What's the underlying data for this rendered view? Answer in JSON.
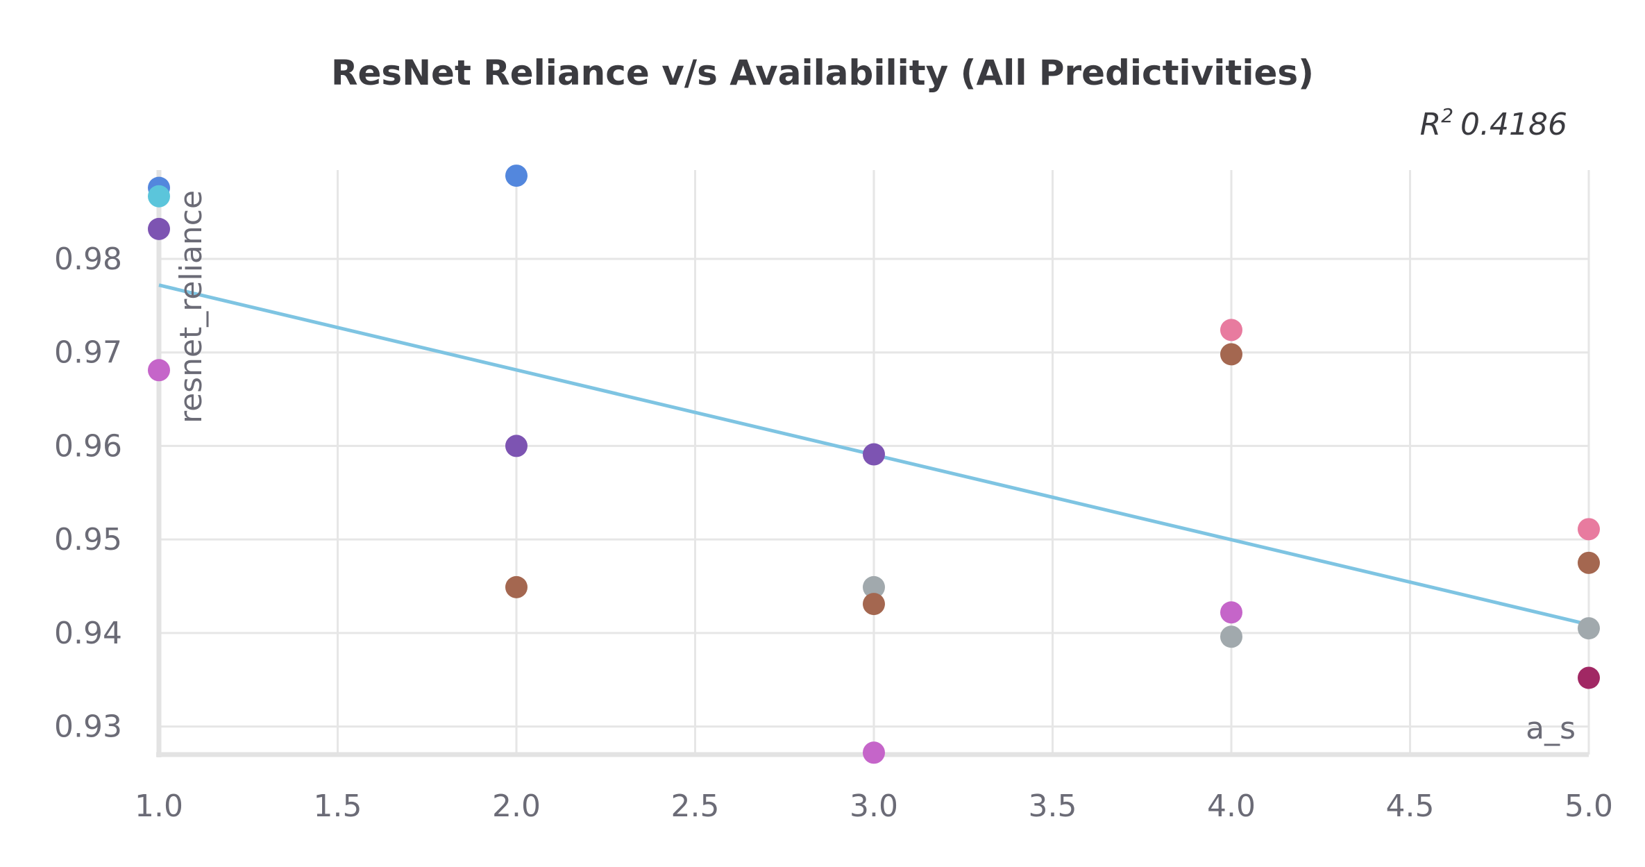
{
  "chart_data": {
    "type": "scatter",
    "title": "ResNet Reliance v/s Availability (All Predictivities)",
    "annotation": {
      "r2_symbol": "R",
      "r2_exponent": "2",
      "r2_value": "0.4186"
    },
    "xlabel": "a_s",
    "ylabel": "resnet_reliance",
    "xlim": [
      1.0,
      5.0
    ],
    "ylim": [
      0.927,
      0.9895
    ],
    "xticks": [
      {
        "value": 1.0,
        "label": "1.0"
      },
      {
        "value": 1.5,
        "label": "1.5"
      },
      {
        "value": 2.0,
        "label": "2.0"
      },
      {
        "value": 2.5,
        "label": "2.5"
      },
      {
        "value": 3.0,
        "label": "3.0"
      },
      {
        "value": 3.5,
        "label": "3.5"
      },
      {
        "value": 4.0,
        "label": "4.0"
      },
      {
        "value": 4.5,
        "label": "4.5"
      },
      {
        "value": 5.0,
        "label": "5.0"
      }
    ],
    "yticks": [
      {
        "value": 0.93,
        "label": "0.93"
      },
      {
        "value": 0.94,
        "label": "0.94"
      },
      {
        "value": 0.95,
        "label": "0.95"
      },
      {
        "value": 0.96,
        "label": "0.96"
      },
      {
        "value": 0.97,
        "label": "0.97"
      },
      {
        "value": 0.98,
        "label": "0.98"
      }
    ],
    "grid": true,
    "trendline": {
      "x": [
        1.0,
        5.0
      ],
      "y": [
        0.9772,
        0.9409
      ],
      "color": "#7ec4e2"
    },
    "points": [
      {
        "x": 1.0,
        "y": 0.9876,
        "color": "#5387dd"
      },
      {
        "x": 1.0,
        "y": 0.9867,
        "color": "#5bc5db"
      },
      {
        "x": 1.0,
        "y": 0.9832,
        "color": "#7d54b2"
      },
      {
        "x": 1.0,
        "y": 0.9681,
        "color": "#c565c9"
      },
      {
        "x": 2.0,
        "y": 0.9889,
        "color": "#5387dd"
      },
      {
        "x": 2.0,
        "y": 0.96,
        "color": "#7d54b2"
      },
      {
        "x": 2.0,
        "y": 0.9449,
        "color": "#a46750"
      },
      {
        "x": 3.0,
        "y": 0.9591,
        "color": "#7d54b2"
      },
      {
        "x": 3.0,
        "y": 0.9449,
        "color": "#a1a9ad"
      },
      {
        "x": 3.0,
        "y": 0.9431,
        "color": "#a46750"
      },
      {
        "x": 3.0,
        "y": 0.9272,
        "color": "#c565c9"
      },
      {
        "x": 4.0,
        "y": 0.9724,
        "color": "#e87b9f"
      },
      {
        "x": 4.0,
        "y": 0.9698,
        "color": "#a46750"
      },
      {
        "x": 4.0,
        "y": 0.9422,
        "color": "#c565c9"
      },
      {
        "x": 4.0,
        "y": 0.9396,
        "color": "#a1a9ad"
      },
      {
        "x": 5.0,
        "y": 0.9511,
        "color": "#e87b9f"
      },
      {
        "x": 5.0,
        "y": 0.9475,
        "color": "#a46750"
      },
      {
        "x": 5.0,
        "y": 0.9405,
        "color": "#a1a9ad"
      },
      {
        "x": 5.0,
        "y": 0.9352,
        "color": "#a12864"
      }
    ]
  }
}
